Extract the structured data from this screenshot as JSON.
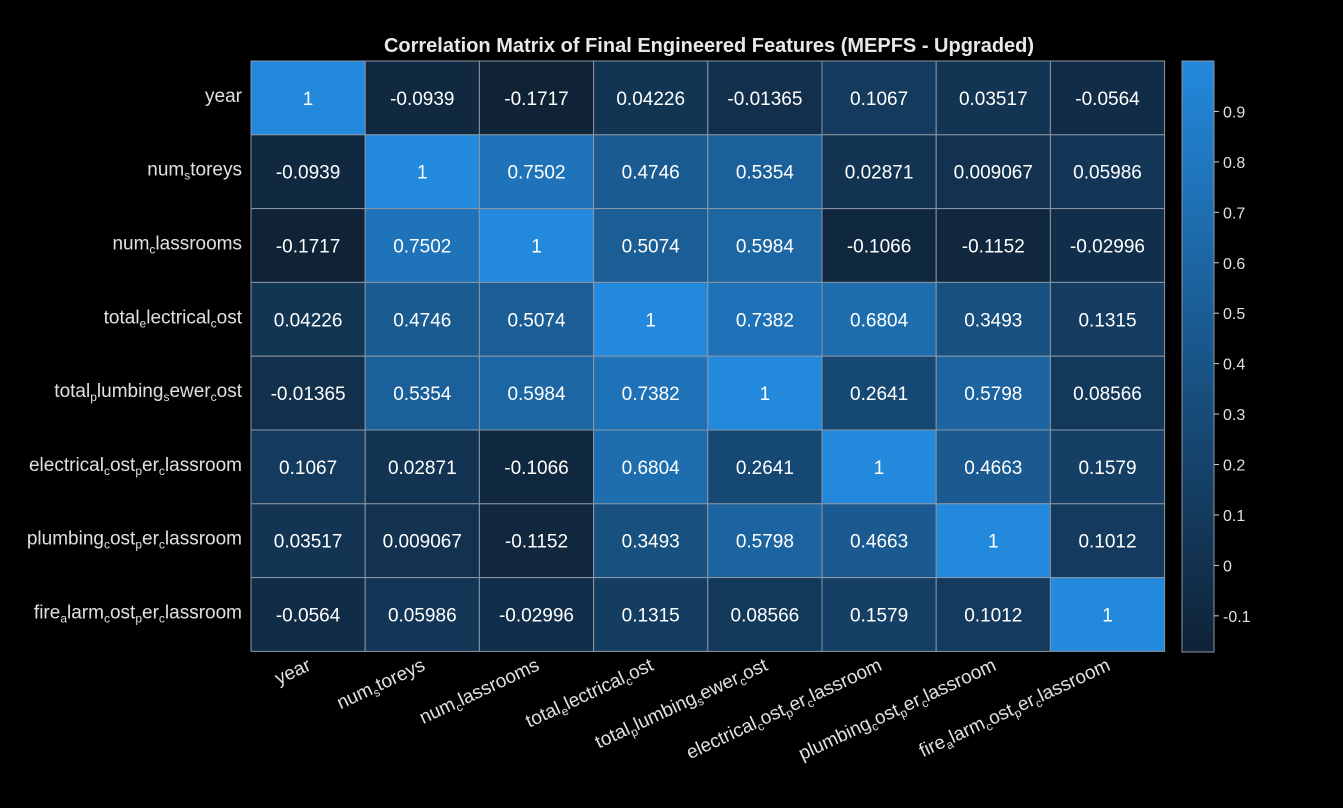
{
  "chart_data": {
    "type": "heatmap",
    "title": "Correlation Matrix of Final Engineered Features (MEPFS - Upgraded)",
    "labels": [
      [
        {
          "t": "year",
          "s": false
        }
      ],
      [
        {
          "t": "num",
          "s": false
        },
        {
          "t": "s",
          "s": true
        },
        {
          "t": "toreys",
          "s": false
        }
      ],
      [
        {
          "t": "num",
          "s": false
        },
        {
          "t": "c",
          "s": true
        },
        {
          "t": "lassrooms",
          "s": false
        }
      ],
      [
        {
          "t": "total",
          "s": false
        },
        {
          "t": "e",
          "s": true
        },
        {
          "t": "lectrical",
          "s": false
        },
        {
          "t": "c",
          "s": true
        },
        {
          "t": "ost",
          "s": false
        }
      ],
      [
        {
          "t": "total",
          "s": false
        },
        {
          "t": "p",
          "s": true
        },
        {
          "t": "lumbing",
          "s": false
        },
        {
          "t": "s",
          "s": true
        },
        {
          "t": "ewer",
          "s": false
        },
        {
          "t": "c",
          "s": true
        },
        {
          "t": "ost",
          "s": false
        }
      ],
      [
        {
          "t": "electrical",
          "s": false
        },
        {
          "t": "c",
          "s": true
        },
        {
          "t": "ost",
          "s": false
        },
        {
          "t": "p",
          "s": true
        },
        {
          "t": "er",
          "s": false
        },
        {
          "t": "c",
          "s": true
        },
        {
          "t": "lassroom",
          "s": false
        }
      ],
      [
        {
          "t": "plumbing",
          "s": false
        },
        {
          "t": "c",
          "s": true
        },
        {
          "t": "ost",
          "s": false
        },
        {
          "t": "p",
          "s": true
        },
        {
          "t": "er",
          "s": false
        },
        {
          "t": "c",
          "s": true
        },
        {
          "t": "lassroom",
          "s": false
        }
      ],
      [
        {
          "t": "fire",
          "s": false
        },
        {
          "t": "a",
          "s": true
        },
        {
          "t": "larm",
          "s": false
        },
        {
          "t": "c",
          "s": true
        },
        {
          "t": "ost",
          "s": false
        },
        {
          "t": "p",
          "s": true
        },
        {
          "t": "er",
          "s": false
        },
        {
          "t": "c",
          "s": true
        },
        {
          "t": "lassroom",
          "s": false
        }
      ]
    ],
    "matrix": [
      [
        "1",
        "-0.0939",
        "-0.1717",
        "0.04226",
        "-0.01365",
        "0.1067",
        "0.03517",
        "-0.0564"
      ],
      [
        "-0.0939",
        "1",
        "0.7502",
        "0.4746",
        "0.5354",
        "0.02871",
        "0.009067",
        "0.05986"
      ],
      [
        "-0.1717",
        "0.7502",
        "1",
        "0.5074",
        "0.5984",
        "-0.1066",
        "-0.1152",
        "-0.02996"
      ],
      [
        "0.04226",
        "0.4746",
        "0.5074",
        "1",
        "0.7382",
        "0.6804",
        "0.3493",
        "0.1315"
      ],
      [
        "-0.01365",
        "0.5354",
        "0.5984",
        "0.7382",
        "1",
        "0.2641",
        "0.5798",
        "0.08566"
      ],
      [
        "0.1067",
        "0.02871",
        "-0.1066",
        "0.6804",
        "0.2641",
        "1",
        "0.4663",
        "0.1579"
      ],
      [
        "0.03517",
        "0.009067",
        "-0.1152",
        "0.3493",
        "0.5798",
        "0.4663",
        "1",
        "0.1012"
      ],
      [
        "-0.0564",
        "0.05986",
        "-0.02996",
        "0.1315",
        "0.08566",
        "0.1579",
        "0.1012",
        "1"
      ]
    ],
    "colorbar": {
      "range": [
        -0.1717,
        1
      ],
      "ticks": [
        "-0.1",
        "0",
        "0.1",
        "0.2",
        "0.3",
        "0.4",
        "0.5",
        "0.6",
        "0.7",
        "0.8",
        "0.9"
      ],
      "color_low": "#0f2236",
      "color_high": "#2389dc"
    },
    "grid_color": "#8a97a6"
  }
}
